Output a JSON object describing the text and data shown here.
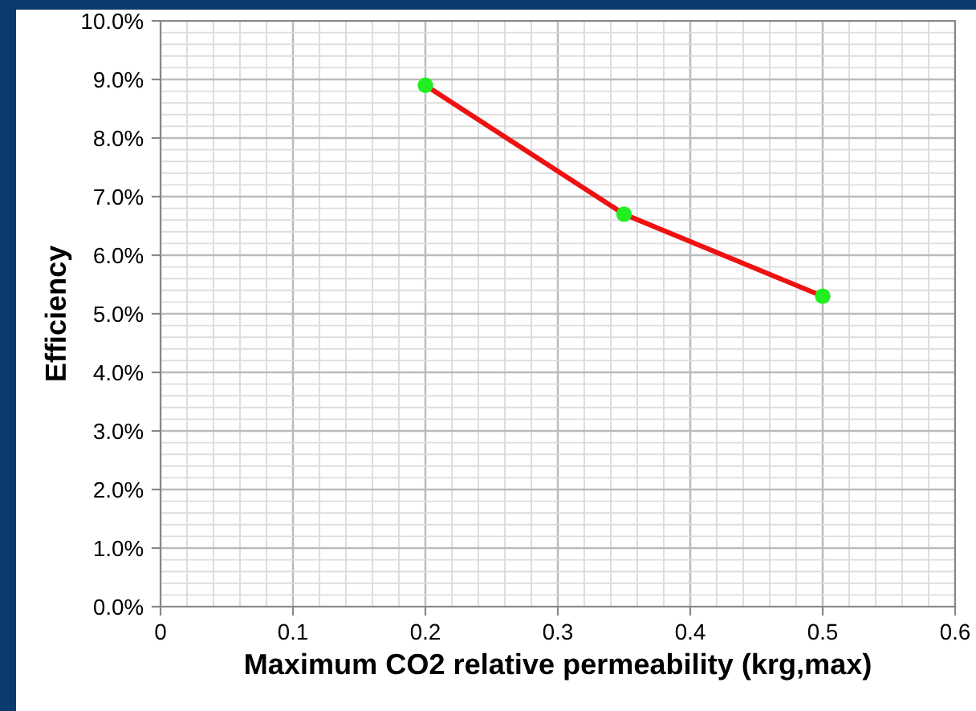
{
  "chart_data": {
    "type": "line",
    "xlabel": "Maximum CO2 relative permeability (krg,max)",
    "ylabel": "Efficiency",
    "x": [
      0.2,
      0.35,
      0.5
    ],
    "series": [
      {
        "color": "#ee1111",
        "values": [
          8.9,
          6.7,
          5.3
        ]
      }
    ],
    "marker": "circle",
    "line_style": "solid",
    "grid": true,
    "xlim": [
      0,
      0.6
    ],
    "xticks": [
      0,
      0.1,
      0.2,
      0.3,
      0.4,
      0.5,
      0.6
    ],
    "ylim": [
      0,
      10
    ],
    "yticks": [
      {
        "value": 0,
        "label": "0.0%"
      },
      {
        "value": 1,
        "label": "1.0%"
      },
      {
        "value": 2,
        "label": "2.0%"
      },
      {
        "value": 3,
        "label": "3.0%"
      },
      {
        "value": 4,
        "label": "4.0%"
      },
      {
        "value": 5,
        "label": "5.0%"
      },
      {
        "value": 6,
        "label": "6.0%"
      },
      {
        "value": 7,
        "label": "7.0%"
      },
      {
        "value": 8,
        "label": "8.0%"
      },
      {
        "value": 9,
        "label": "9.0%"
      },
      {
        "value": 10,
        "label": "10.0%"
      }
    ]
  }
}
